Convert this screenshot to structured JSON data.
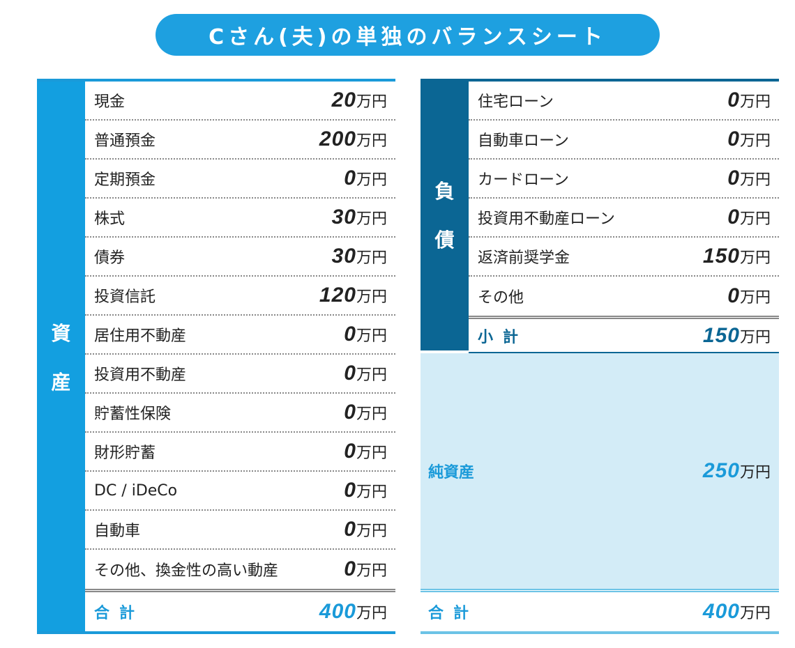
{
  "title": "Cさん(夫)の単独のバランスシート",
  "assets": {
    "side_label": [
      "資",
      "産"
    ],
    "items": [
      {
        "label": "現金",
        "value": "20",
        "unit": "万円"
      },
      {
        "label": "普通預金",
        "value": "200",
        "unit": "万円"
      },
      {
        "label": "定期預金",
        "value": "0",
        "unit": "万円"
      },
      {
        "label": "株式",
        "value": "30",
        "unit": "万円"
      },
      {
        "label": "債券",
        "value": "30",
        "unit": "万円"
      },
      {
        "label": "投資信託",
        "value": "120",
        "unit": "万円"
      },
      {
        "label": "居住用不動産",
        "value": "0",
        "unit": "万円"
      },
      {
        "label": "投資用不動産",
        "value": "0",
        "unit": "万円"
      },
      {
        "label": "貯蓄性保険",
        "value": "0",
        "unit": "万円"
      },
      {
        "label": "財形貯蓄",
        "value": "0",
        "unit": "万円"
      },
      {
        "label": "DC / iDeCo",
        "value": "0",
        "unit": "万円"
      },
      {
        "label": "自動車",
        "value": "0",
        "unit": "万円"
      },
      {
        "label": "その他、換金性の高い動産",
        "value": "0",
        "unit": "万円"
      }
    ],
    "total": {
      "label": "合計",
      "value": "400",
      "unit": "万円"
    }
  },
  "liabilities": {
    "side_label": [
      "負",
      "債"
    ],
    "items": [
      {
        "label": "住宅ローン",
        "value": "0",
        "unit": "万円"
      },
      {
        "label": "自動車ローン",
        "value": "0",
        "unit": "万円"
      },
      {
        "label": "カードローン",
        "value": "0",
        "unit": "万円"
      },
      {
        "label": "投資用不動産ローン",
        "value": "0",
        "unit": "万円"
      },
      {
        "label": "返済前奨学金",
        "value": "150",
        "unit": "万円"
      },
      {
        "label": "その他",
        "value": "0",
        "unit": "万円"
      }
    ],
    "subtotal": {
      "label": "小計",
      "value": "150",
      "unit": "万円"
    }
  },
  "net_assets": {
    "label": "純資産",
    "value": "250",
    "unit": "万円"
  },
  "right_total": {
    "label": "合計",
    "value": "400",
    "unit": "万円"
  },
  "colors": {
    "asset_blue": "#139fe0",
    "liability_navy": "#0b6694",
    "net_bg": "#d3ecf7",
    "title_bg": "#1ea0e0"
  }
}
